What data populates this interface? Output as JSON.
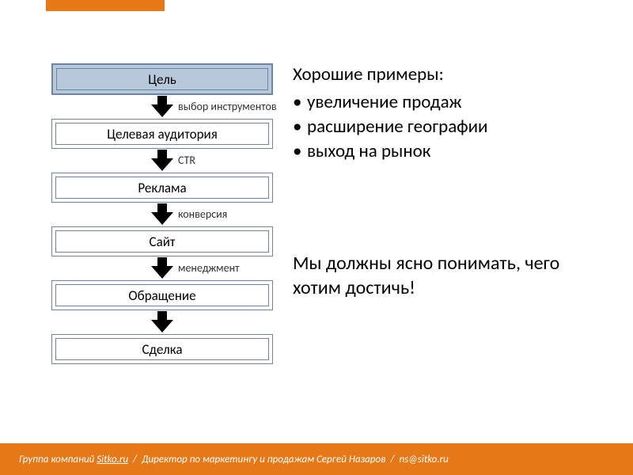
{
  "colors": {
    "accent": "#e77817",
    "box_border": "#6d84a4",
    "highlight_fill": "#b8c8db",
    "footer_bg": "#e77817",
    "footer_text": "#ffffff",
    "text": "#000000"
  },
  "flowchart": {
    "type": "flowchart",
    "steps": [
      {
        "label": "Цель",
        "highlighted": true,
        "arrow_label": ""
      },
      {
        "label": "Целевая аудитория",
        "highlighted": false,
        "arrow_label": "выбор инструментов"
      },
      {
        "label": "Реклама",
        "highlighted": false,
        "arrow_label": "CTR"
      },
      {
        "label": "Сайт",
        "highlighted": false,
        "arrow_label": "конверсия"
      },
      {
        "label": "Обращение",
        "highlighted": false,
        "arrow_label": "менеджмент"
      },
      {
        "label": "Сделка",
        "highlighted": false,
        "arrow_label": null
      }
    ]
  },
  "right": {
    "heading": "Хорошие примеры:",
    "bullets": [
      "увеличение продаж",
      "расширение географии",
      "выход на рынок"
    ],
    "statement": "Мы должны ясно понимать, чего хотим достичь!"
  },
  "footer": {
    "prefix": "Группа компаний",
    "link": "Sitko.ru",
    "role": "Директор по маркетингу и продажам",
    "name": "Сергей Назаров",
    "email": "ns@sitko.ru",
    "separator": "/"
  }
}
